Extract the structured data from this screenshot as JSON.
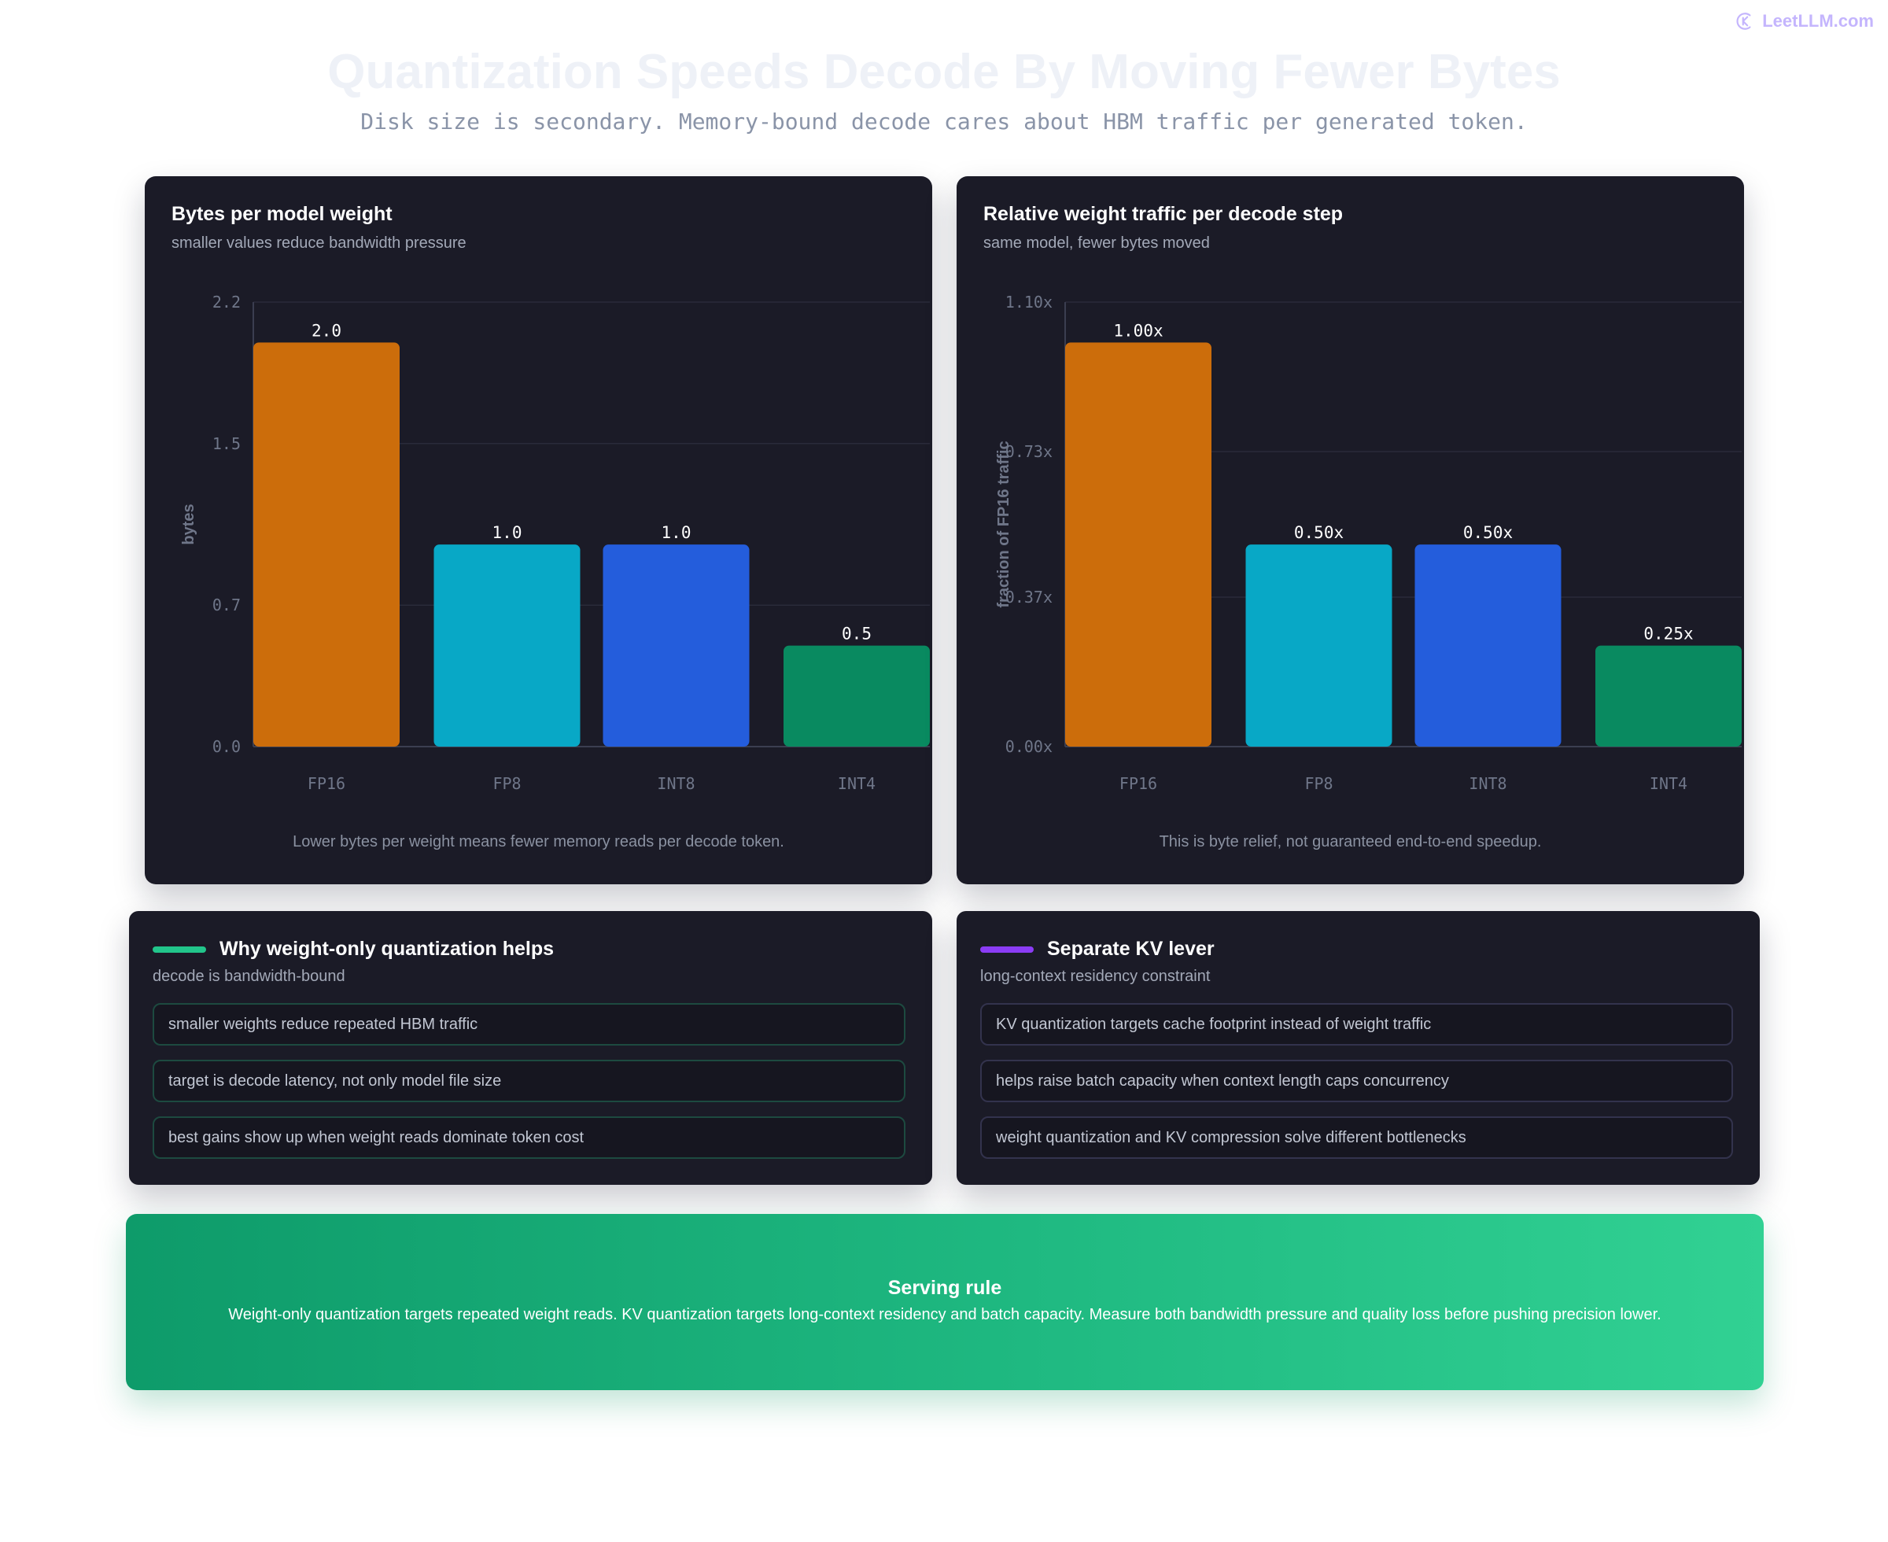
{
  "brand": {
    "name": "LeetLLM.com",
    "icon": "brand-logo-icon",
    "color": "#c4b5fd"
  },
  "header": {
    "title": "Quantization Speeds Decode By Moving Fewer Bytes",
    "subtitle": "Disk size is secondary. Memory-bound decode cares about HBM traffic per generated token."
  },
  "colors": {
    "fp16": "#cc6d0b",
    "fp8": "#08a8c6",
    "int8": "#245ddc",
    "int4": "#098a60",
    "accent_green": "#22c58b",
    "accent_purple": "#8b3cf5",
    "card_bg": "#1b1b27"
  },
  "chart_data": [
    {
      "type": "bar",
      "title": "Bytes per model weight",
      "subtitle": "smaller values reduce bandwidth pressure",
      "categories": [
        "FP16",
        "FP8",
        "INT8",
        "INT4"
      ],
      "values": [
        2.0,
        1.0,
        1.0,
        0.5
      ],
      "value_labels": [
        "2.0",
        "1.0",
        "1.0",
        "0.5"
      ],
      "ylabel": "bytes",
      "xlabel": "",
      "ylim": [
        0,
        2.2
      ],
      "yticks": [
        0.0,
        0.7,
        1.5,
        2.2
      ],
      "ytick_labels": [
        "0.0",
        "0.7",
        "1.5",
        "2.2"
      ],
      "grid": true,
      "legend": "none",
      "footer": "Lower bytes per weight means fewer memory reads per decode token."
    },
    {
      "type": "bar",
      "title": "Relative weight traffic per decode step",
      "subtitle": "same model, fewer bytes moved",
      "categories": [
        "FP16",
        "FP8",
        "INT8",
        "INT4"
      ],
      "values": [
        1.0,
        0.5,
        0.5,
        0.25
      ],
      "value_labels": [
        "1.00x",
        "0.50x",
        "0.50x",
        "0.25x"
      ],
      "ylabel": "fraction of FP16 traffic",
      "xlabel": "",
      "ylim": [
        0,
        1.1
      ],
      "yticks": [
        0.0,
        0.37,
        0.73,
        1.1
      ],
      "ytick_labels": [
        "0.00x",
        "0.37x",
        "0.73x",
        "1.10x"
      ],
      "grid": true,
      "legend": "none",
      "footer": "This is byte relief, not guaranteed end-to-end speedup."
    }
  ],
  "why_card": {
    "title": "Why weight-only quantization helps",
    "subtitle": "decode is bandwidth-bound",
    "items": [
      "smaller weights reduce repeated HBM traffic",
      "target is decode latency, not only model file size",
      "best gains show up when weight reads dominate token cost"
    ]
  },
  "kv_card": {
    "title": "Separate KV lever",
    "subtitle": "long-context residency constraint",
    "items": [
      "KV quantization targets cache footprint instead of weight traffic",
      "helps raise batch capacity when context length caps concurrency",
      "weight quantization and KV compression solve different bottlenecks"
    ]
  },
  "serving_rule": {
    "title": "Serving rule",
    "text": "Weight-only quantization targets repeated weight reads. KV quantization targets long-context residency and batch capacity. Measure both bandwidth pressure and quality loss before pushing precision lower."
  }
}
